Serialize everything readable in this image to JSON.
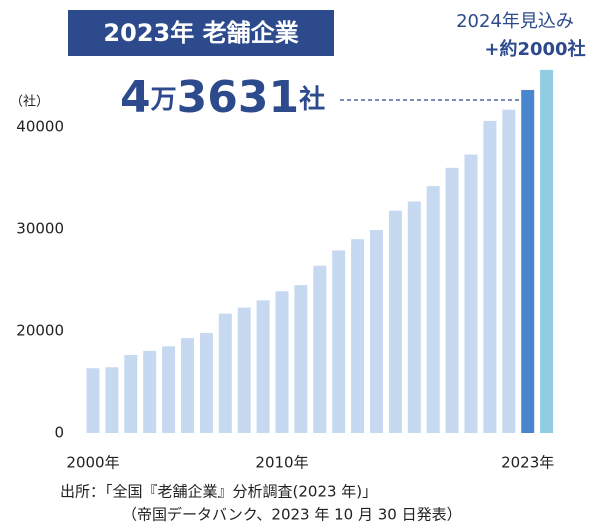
{
  "chart_data": {
    "type": "bar",
    "title": "2023年 老舗企業",
    "headline_parts": [
      "4",
      "万",
      "3631",
      "社"
    ],
    "forecast_note": [
      "2024年見込み",
      "+約2000社"
    ],
    "y_unit": "（社）",
    "source": [
      "出所：「全国『老舗企業』分析調査(2023 年)」",
      "（帝国データバンク、2023 年 10 月 30 日発表）"
    ],
    "categories": [
      "2000年",
      null,
      null,
      null,
      null,
      null,
      null,
      null,
      null,
      null,
      "2010年",
      null,
      null,
      null,
      null,
      null,
      null,
      null,
      null,
      null,
      null,
      null,
      null,
      "2023年",
      null
    ],
    "values": [
      12700,
      12900,
      15300,
      16100,
      17000,
      18600,
      19600,
      21700,
      22300,
      23000,
      23900,
      24500,
      26400,
      27900,
      29000,
      29900,
      31800,
      32700,
      34200,
      36000,
      37300,
      40600,
      41700,
      43631,
      45600
    ],
    "colors": [
      "#c6d9f0",
      "#c6d9f0",
      "#c6d9f0",
      "#c6d9f0",
      "#c6d9f0",
      "#c6d9f0",
      "#c6d9f0",
      "#c6d9f0",
      "#c6d9f0",
      "#c6d9f0",
      "#c6d9f0",
      "#c6d9f0",
      "#c6d9f0",
      "#c6d9f0",
      "#c6d9f0",
      "#c6d9f0",
      "#c6d9f0",
      "#c6d9f0",
      "#c6d9f0",
      "#c6d9f0",
      "#c6d9f0",
      "#c6d9f0",
      "#c6d9f0",
      "#4a86d0",
      "#84c8e0"
    ],
    "ylim": [
      0,
      45000
    ],
    "yticks": [
      0,
      20000,
      30000,
      40000
    ]
  }
}
